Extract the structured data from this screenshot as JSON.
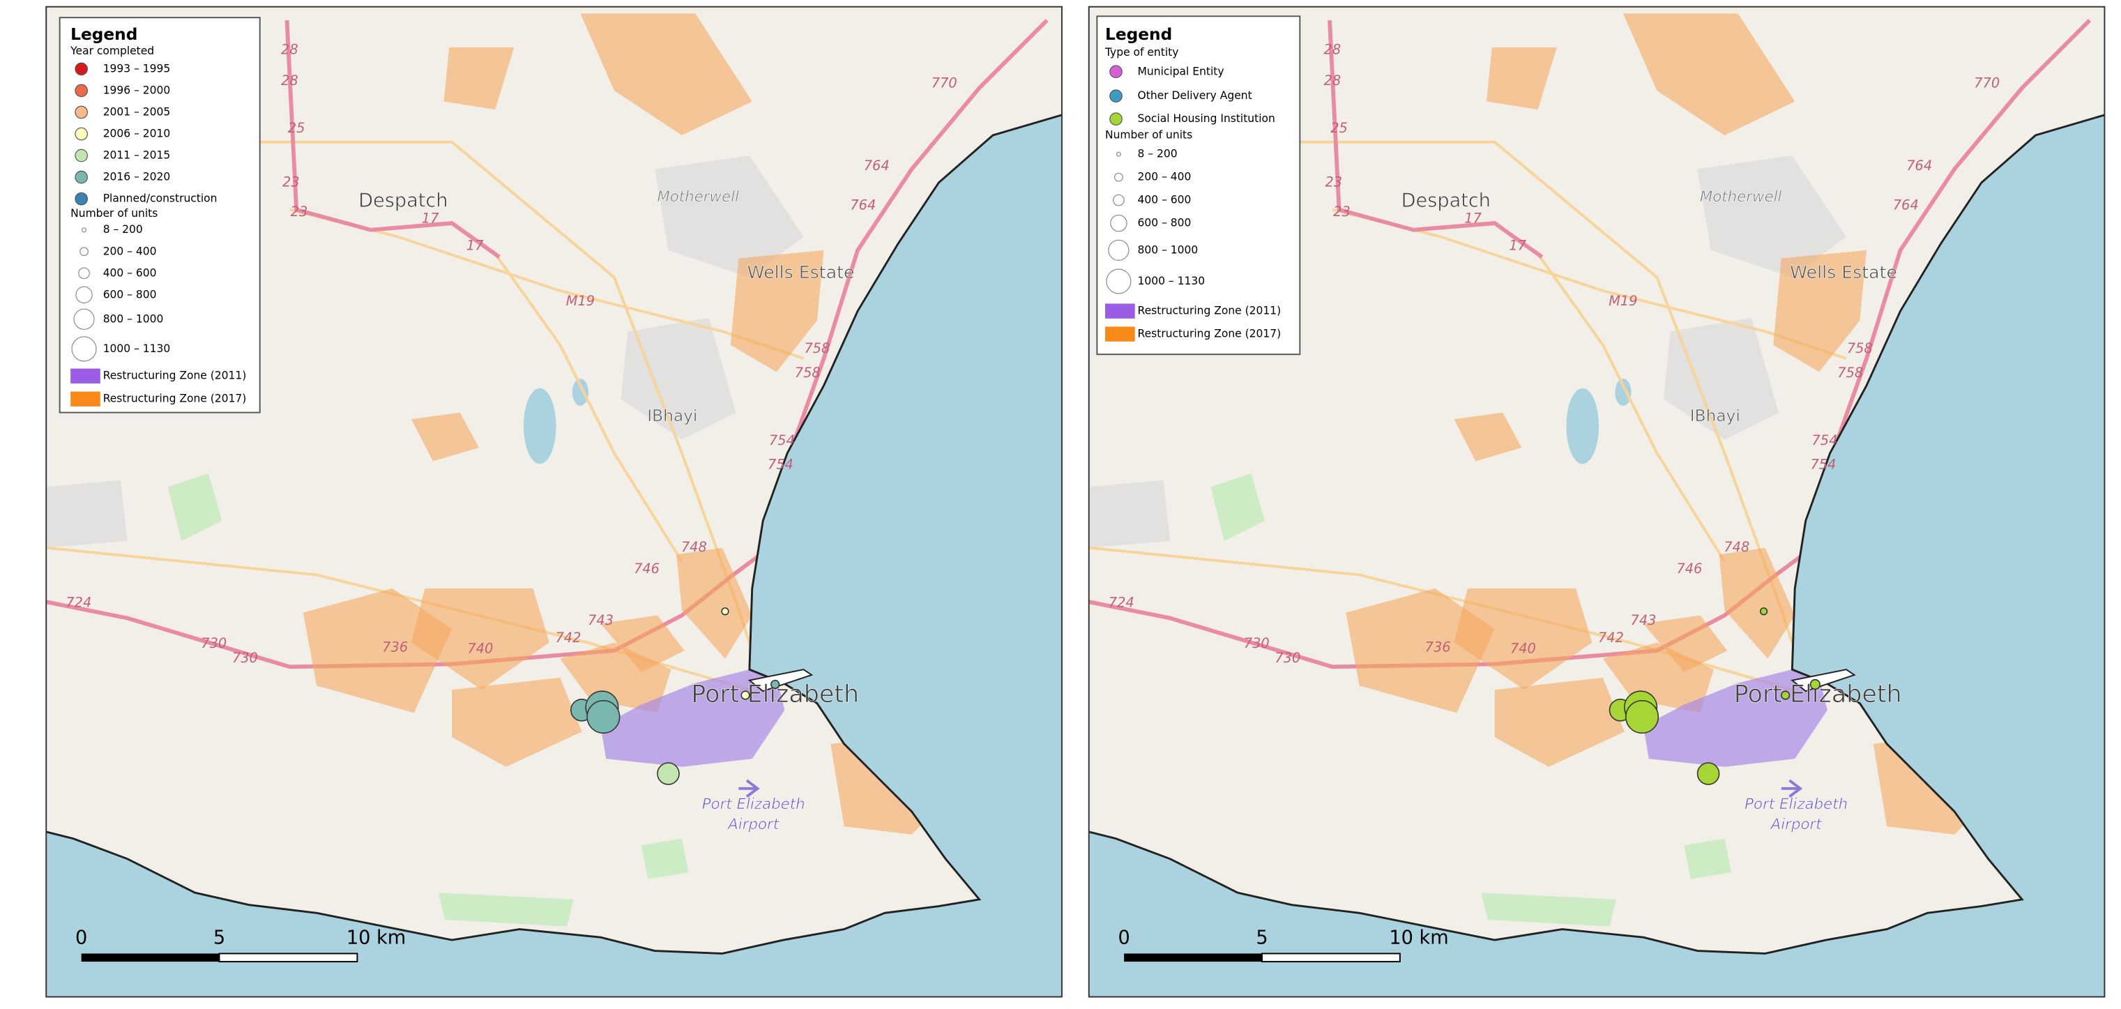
{
  "panels": [
    {
      "legend": {
        "title": "Legend",
        "group1": "Year completed",
        "items": [
          {
            "label": "1993 – 1995",
            "color": "#d7191c"
          },
          {
            "label": "1996 – 2000",
            "color": "#ea6b48"
          },
          {
            "label": "2001 – 2005",
            "color": "#f9b98a"
          },
          {
            "label": "2006 – 2010",
            "color": "#fdfdc0"
          },
          {
            "label": "2011 – 2015",
            "color": "#c4e5b0"
          },
          {
            "label": "2016 – 2020",
            "color": "#7ab7ae"
          },
          {
            "label": "Planned/construction",
            "color": "#3a82b5"
          }
        ],
        "group2": "Number of units",
        "sizes": [
          "8 – 200",
          "200 – 400",
          "400 – 600",
          "600 – 800",
          "800 – 1000",
          "1000 – 1130"
        ],
        "zones": [
          {
            "label": "Restructuring Zone (2011)",
            "color": "#9b5de5"
          },
          {
            "label": "Restructuring Zone (2017)",
            "color": "#f98a1a"
          }
        ]
      }
    },
    {
      "legend": {
        "title": "Legend",
        "group1": "Type of entity",
        "items": [
          {
            "label": "Municipal Entity",
            "color": "#d65fd9"
          },
          {
            "label": "Other Delivery Agent",
            "color": "#3d9cc4"
          },
          {
            "label": "Social Housing Institution",
            "color": "#a8d536"
          }
        ],
        "group2": "Number of units",
        "sizes": [
          "8 – 200",
          "200 – 400",
          "400 – 600",
          "600 – 800",
          "800 – 1000",
          "1000 – 1130"
        ],
        "zones": [
          {
            "label": "Restructuring Zone (2011)",
            "color": "#9b5de5"
          },
          {
            "label": "Restructuring Zone (2017)",
            "color": "#f98a1a"
          }
        ]
      }
    }
  ],
  "map": {
    "places": [
      "Despatch",
      "Motherwell",
      "Wells Estate",
      "IBhayi",
      "Port Elizabeth",
      "Port Elizabeth",
      "Airport"
    ],
    "roads": [
      "28",
      "28",
      "25",
      "23",
      "23",
      "17",
      "17",
      "770",
      "764",
      "764",
      "758",
      "758",
      "754",
      "754",
      "748",
      "746",
      "743",
      "742",
      "740",
      "736",
      "730",
      "730",
      "724",
      "M19"
    ],
    "scale": [
      "0",
      "5",
      "10 km"
    ]
  }
}
